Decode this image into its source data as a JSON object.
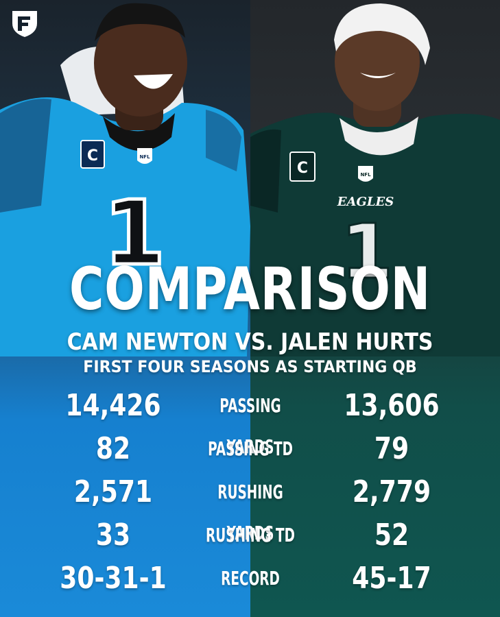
{
  "title": "COMPARISON",
  "subtitle": "CAM NEWTON VS. JALEN HURTS",
  "subtitle2": "FIRST FOUR SEASONS AS STARTING QB",
  "stats": [
    {
      "label": "PASSING YARDS",
      "left": "14,426",
      "right": "13,606"
    },
    {
      "label": "PASSING TD",
      "left": "82",
      "right": "79"
    },
    {
      "label": "RUSHING YARDS",
      "left": "2,571",
      "right": "2,779"
    },
    {
      "label": "RUSHING TD",
      "left": "33",
      "right": "52"
    },
    {
      "label": "RECORD",
      "left": "30-31-1",
      "right": "45-17"
    }
  ],
  "players": {
    "left": {
      "jersey_number": "1",
      "captain_patch": "C",
      "patch_label": "NFL"
    },
    "right": {
      "jersey_number": "1",
      "captain_patch": "C",
      "patch_label": "NFL",
      "wordmark": "EAGLES"
    }
  },
  "colors": {
    "left_bg": "#1680cf",
    "right_bg": "#0f5650",
    "panthers_blue": "#1aa0e0",
    "eagles_green": "#0e3b37",
    "text": "#ffffff"
  },
  "icons": {
    "brand_logo": "fanduel-shield-icon"
  }
}
